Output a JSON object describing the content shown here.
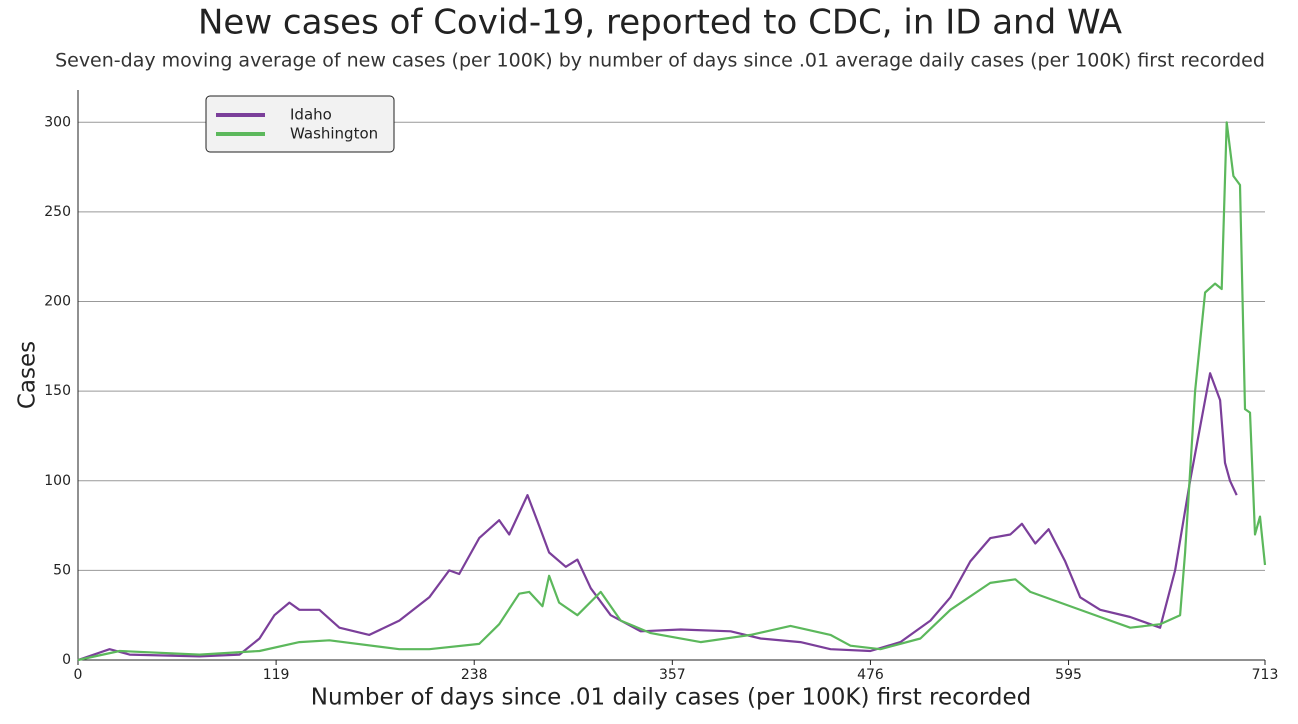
{
  "chart_data": {
    "type": "line",
    "title": "New cases of Covid-19, reported to CDC, in ID and WA",
    "subtitle": "Seven-day moving average of new cases (per 100K) by number of days since .01 average daily cases (per 100K) first recorded",
    "x_label": "Number of days since .01 daily cases (per 100K) first recorded",
    "y_label": "Cases",
    "xlim": [
      0,
      713
    ],
    "ylim": [
      0,
      318
    ],
    "xticks": [
      0,
      119,
      238,
      357,
      476,
      595,
      713
    ],
    "yticks": [
      0,
      50,
      100,
      150,
      200,
      250,
      300
    ],
    "grid": true,
    "legend": "upper left",
    "series": [
      {
        "name": "Idaho",
        "color": "#7b3f9a",
        "x": [
          0,
          19,
          31,
          73,
          97,
          109,
          118,
          127,
          133,
          145,
          157,
          175,
          193,
          211,
          223,
          229,
          241,
          253,
          259,
          270,
          277,
          283,
          293,
          300,
          308,
          320,
          338,
          362,
          392,
          410,
          434,
          452,
          476,
          494,
          512,
          524,
          536,
          548,
          560,
          567,
          575,
          583,
          593,
          602,
          614,
          632,
          650,
          659,
          668,
          674,
          680,
          686,
          689,
          692,
          696
        ],
        "values": [
          0,
          6,
          3,
          2,
          3,
          12,
          25,
          32,
          28,
          28,
          18,
          14,
          22,
          35,
          50,
          48,
          68,
          78,
          70,
          92,
          75,
          60,
          52,
          56,
          40,
          25,
          16,
          17,
          16,
          12,
          10,
          6,
          5,
          10,
          22,
          35,
          55,
          68,
          70,
          76,
          65,
          73,
          55,
          35,
          28,
          24,
          18,
          50,
          100,
          130,
          160,
          145,
          110,
          100,
          92
        ]
      },
      {
        "name": "Washington",
        "color": "#5cb85c",
        "x": [
          0,
          25,
          73,
          109,
          133,
          151,
          193,
          211,
          241,
          253,
          265,
          271,
          279,
          283,
          289,
          300,
          314,
          326,
          344,
          374,
          404,
          428,
          452,
          464,
          482,
          506,
          524,
          548,
          563,
          572,
          590,
          614,
          632,
          650,
          662,
          665,
          671,
          677,
          683,
          687,
          690,
          694,
          698,
          701,
          704,
          707,
          710,
          713
        ],
        "values": [
          0,
          5,
          3,
          5,
          10,
          11,
          6,
          6,
          9,
          20,
          37,
          38,
          30,
          47,
          32,
          25,
          38,
          22,
          15,
          10,
          14,
          19,
          14,
          8,
          6,
          12,
          28,
          43,
          45,
          38,
          32,
          24,
          18,
          20,
          25,
          60,
          150,
          205,
          210,
          207,
          300,
          270,
          265,
          140,
          138,
          70,
          80,
          53
        ]
      }
    ]
  }
}
